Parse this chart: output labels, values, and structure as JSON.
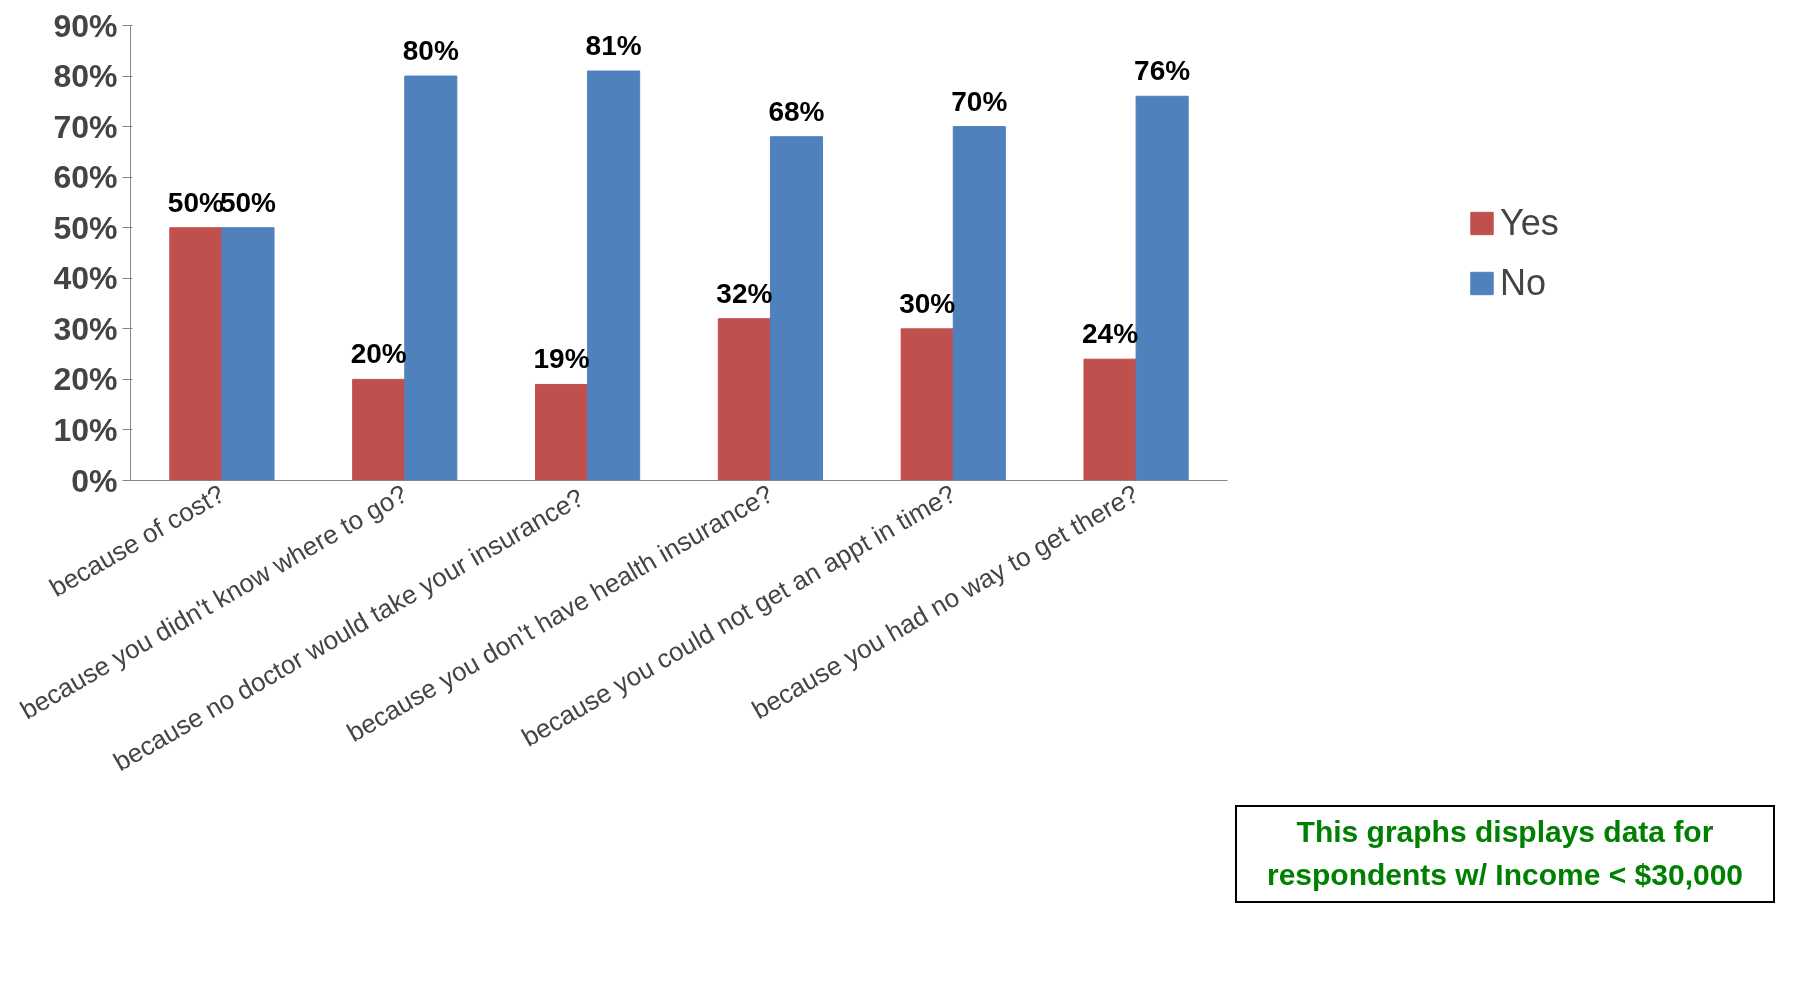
{
  "chart_data": {
    "type": "bar",
    "categories": [
      "because of cost?",
      "because you didn't know where to go?",
      "because no  doctor would take your insurance?",
      "because you don't have health insurance?",
      "because you could not get an appt in time?",
      "because you had no way to get there?"
    ],
    "series": [
      {
        "name": "Yes",
        "color": "#c0504d",
        "values": [
          50,
          20,
          19,
          32,
          30,
          24
        ],
        "value_labels": [
          "50%",
          "20%",
          "19%",
          "32%",
          "30%",
          "24%"
        ]
      },
      {
        "name": "No",
        "color": "#4f81bd",
        "values": [
          50,
          80,
          81,
          68,
          70,
          76
        ],
        "value_labels": [
          "50%",
          "80%",
          "81%",
          "68%",
          "70%",
          "76%"
        ]
      }
    ],
    "ylim": [
      0,
      90
    ],
    "yticks": [
      {
        "value": 0,
        "label": "0%"
      },
      {
        "value": 10,
        "label": "10%"
      },
      {
        "value": 20,
        "label": "20%"
      },
      {
        "value": 30,
        "label": "30%"
      },
      {
        "value": 40,
        "label": "40%"
      },
      {
        "value": 50,
        "label": "50%"
      },
      {
        "value": 60,
        "label": "60%"
      },
      {
        "value": 70,
        "label": "70%"
      },
      {
        "value": 80,
        "label": "80%"
      },
      {
        "value": 90,
        "label": "90%"
      }
    ],
    "legend": "right",
    "annotations": [
      "This graphs displays data for respondents w/ Income < $30,000"
    ]
  }
}
